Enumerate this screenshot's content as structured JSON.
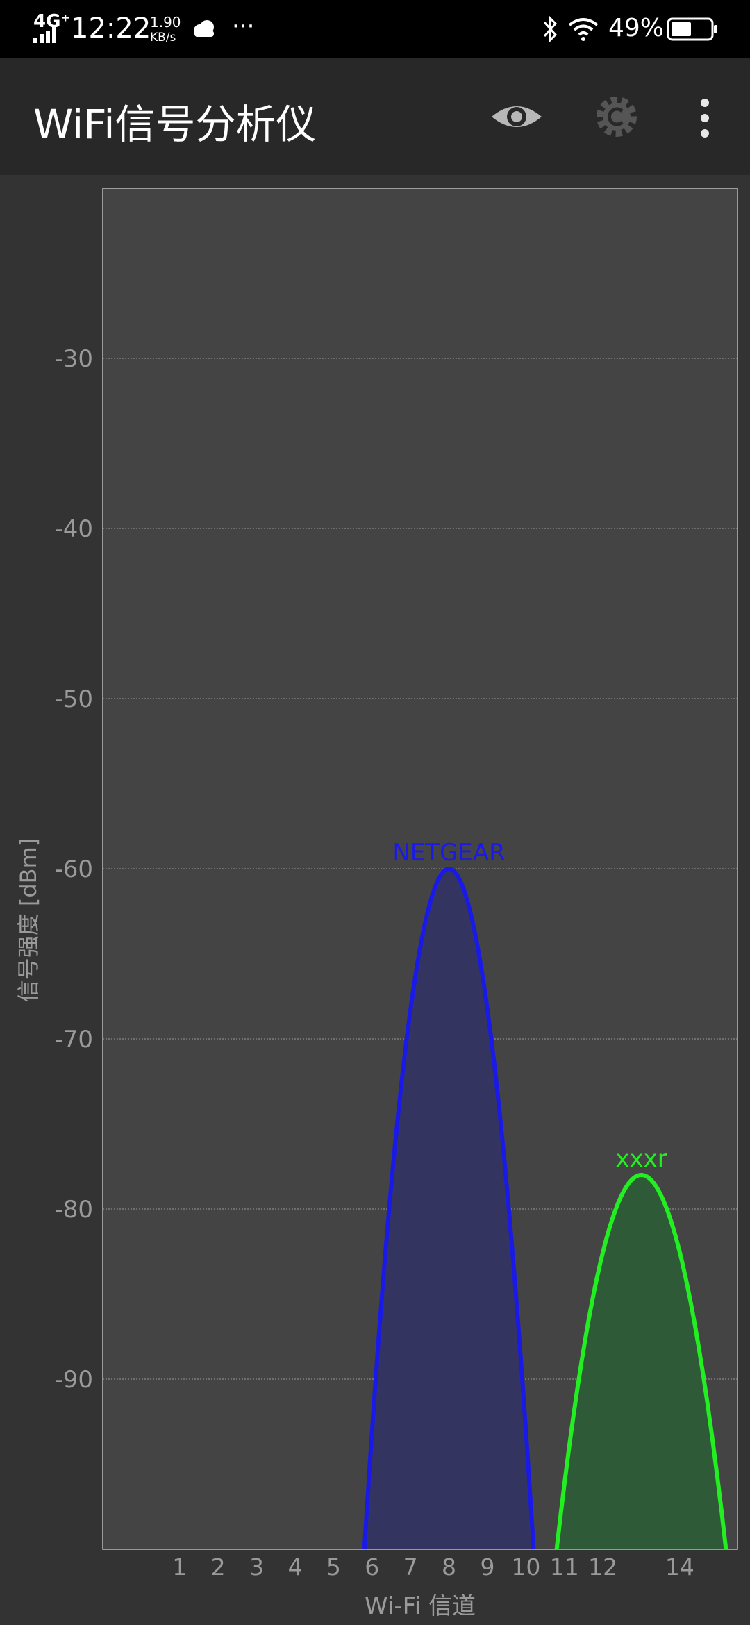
{
  "status_bar": {
    "network": "4G⁺",
    "time": "12:22",
    "speed_value": "1.90",
    "speed_unit": "KB/s",
    "more": "···",
    "battery": "49%"
  },
  "app_bar": {
    "title": "WiFi信号分析仪",
    "icons": [
      "eye-icon",
      "settings-gear-icon",
      "more-vert-icon"
    ]
  },
  "colors": {
    "background": "#333333",
    "plot_bg": "#444444",
    "netgear": "#1a1ae8",
    "xxxr": "#22ee22"
  },
  "chart_data": {
    "type": "area",
    "xlabel": "Wi-Fi 信道",
    "ylabel": "信号强度 [dBm]",
    "xlim": [
      -1,
      15.5
    ],
    "ylim": [
      -100,
      -20
    ],
    "xticks": [
      1,
      2,
      3,
      4,
      5,
      6,
      7,
      8,
      9,
      10,
      11,
      12,
      14
    ],
    "yticks": [
      -30,
      -40,
      -50,
      -60,
      -70,
      -80,
      -90
    ],
    "grid": true,
    "series": [
      {
        "name": "NETGEAR",
        "channel": 8,
        "peak": -60,
        "span": [
          5.8,
          10.2
        ],
        "color": "#1a1ae8",
        "fill": "#343460"
      },
      {
        "name": "xxxr",
        "channel": 13,
        "peak": -78,
        "span": [
          10.8,
          15.2
        ],
        "color": "#22ee22",
        "fill": "#2e5a38"
      }
    ]
  }
}
